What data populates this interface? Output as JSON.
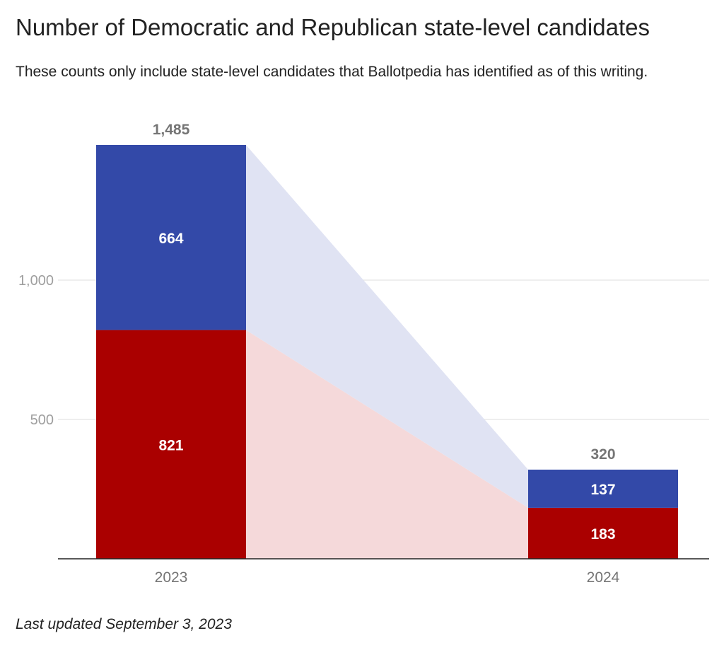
{
  "chart_data": {
    "type": "bar",
    "stacked": true,
    "title": "Number of Democratic and Republican state-level candidates",
    "subtitle": "These counts only include state-level candidates that Ballotpedia has identified as of this writing.",
    "categories": [
      "2023",
      "2024"
    ],
    "series": [
      {
        "key": "republican",
        "values": [
          821,
          183
        ],
        "color": "#aa0000",
        "band_color": "#f5d9da"
      },
      {
        "key": "democratic",
        "values": [
          664,
          137
        ],
        "color": "#3349a8",
        "band_color": "#e0e3f3"
      }
    ],
    "totals": [
      "1,485",
      "320"
    ],
    "segment_labels": [
      [
        "821",
        "664"
      ],
      [
        "183",
        "137"
      ]
    ],
    "yticks": [
      {
        "value": 500,
        "label": "500"
      },
      {
        "value": 1000,
        "label": "1,000"
      }
    ],
    "ylim": [
      0,
      1485
    ],
    "grid": true,
    "connector_bands": true,
    "axis_color": "#222222",
    "grid_color": "#dddddd",
    "tick_label_color": "#9e9e9e",
    "total_label_color": "#757575"
  },
  "footnote": "Last updated September 3, 2023"
}
